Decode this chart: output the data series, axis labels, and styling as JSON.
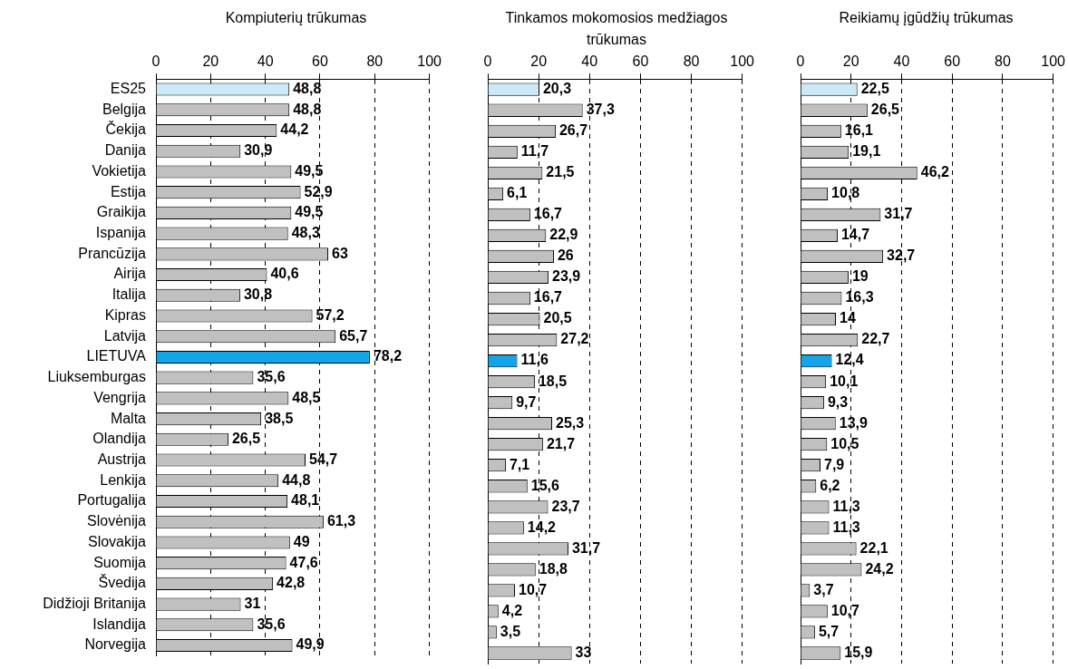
{
  "chart_data": [
    {
      "type": "bar",
      "orientation": "horizontal",
      "title": "Kompiuterių trūkumas",
      "categories": [
        "ES25",
        "Belgija",
        "Čekija",
        "Danija",
        "Vokietija",
        "Estija",
        "Graikija",
        "Ispanija",
        "Prancūzija",
        "Airija",
        "Italija",
        "Kipras",
        "Latvija",
        "LIETUVA",
        "Liuksemburgas",
        "Vengrija",
        "Malta",
        "Olandija",
        "Austrija",
        "Lenkija",
        "Portugalija",
        "Slovėnija",
        "Slovakija",
        "Suomija",
        "Švedija",
        "Didžioji Britanija",
        "Islandija",
        "Norvegija"
      ],
      "values": [
        48.8,
        48.8,
        44.2,
        30.9,
        49.5,
        52.9,
        49.5,
        48.3,
        63,
        40.6,
        30.8,
        57.2,
        65.7,
        78.2,
        35.6,
        48.5,
        38.5,
        26.5,
        54.7,
        44.8,
        48.1,
        61.3,
        49,
        47.6,
        42.8,
        31,
        35.6,
        49.9
      ],
      "value_labels": [
        "48,8",
        "48,8",
        "44,2",
        "30,9",
        "49,5",
        "52,9",
        "49,5",
        "48,3",
        "63",
        "40,6",
        "30,8",
        "57,2",
        "65,7",
        "78,2",
        "35,6",
        "48,5",
        "38,5",
        "26,5",
        "54,7",
        "44,8",
        "48,1",
        "61,3",
        "49",
        "47,6",
        "42,8",
        "31",
        "35,6",
        "49,9"
      ],
      "colors": [
        "#cce9f7",
        "#c0c0c0",
        "#c0c0c0",
        "#c0c0c0",
        "#c0c0c0",
        "#c0c0c0",
        "#c0c0c0",
        "#c0c0c0",
        "#c0c0c0",
        "#c0c0c0",
        "#c0c0c0",
        "#c0c0c0",
        "#c0c0c0",
        "#12a5e8",
        "#c0c0c0",
        "#c0c0c0",
        "#c0c0c0",
        "#c0c0c0",
        "#c0c0c0",
        "#c0c0c0",
        "#c0c0c0",
        "#c0c0c0",
        "#c0c0c0",
        "#c0c0c0",
        "#c0c0c0",
        "#c0c0c0",
        "#c0c0c0",
        "#c0c0c0"
      ],
      "xlim": [
        0,
        100
      ],
      "xticks": [
        0,
        20,
        40,
        60,
        80,
        100
      ],
      "grid": "x",
      "legend": false
    },
    {
      "type": "bar",
      "orientation": "horizontal",
      "title": "Tinkamos mokomosios medžiagos trūkumas",
      "categories": [
        null,
        null,
        null,
        null,
        null,
        null,
        null,
        null,
        null,
        null,
        null,
        null,
        null,
        null,
        null,
        null,
        null,
        null,
        null,
        null,
        null,
        null,
        null,
        null,
        null,
        null,
        null,
        null
      ],
      "values": [
        20.3,
        37.3,
        26.7,
        11.7,
        21.5,
        6.1,
        16.7,
        22.9,
        26,
        23.9,
        16.7,
        20.5,
        27.2,
        11.6,
        18.5,
        9.7,
        25.3,
        21.7,
        7.1,
        15.6,
        23.7,
        14.2,
        31.7,
        18.8,
        10.7,
        4.2,
        3.5,
        33
      ],
      "value_labels": [
        "20,3",
        "37,3",
        "26,7",
        "11,7",
        "21,5",
        "6,1",
        "16,7",
        "22,9",
        "26",
        "23,9",
        "16,7",
        "20,5",
        "27,2",
        "11,6",
        "18,5",
        "9,7",
        "25,3",
        "21,7",
        "7,1",
        "15,6",
        "23,7",
        "14,2",
        "31,7",
        "18,8",
        "10,7",
        "4,2",
        "3,5",
        "33"
      ],
      "colors": [
        "#cce9f7",
        "#c0c0c0",
        "#c0c0c0",
        "#c0c0c0",
        "#c0c0c0",
        "#c0c0c0",
        "#c0c0c0",
        "#c0c0c0",
        "#c0c0c0",
        "#c0c0c0",
        "#c0c0c0",
        "#c0c0c0",
        "#c0c0c0",
        "#12a5e8",
        "#c0c0c0",
        "#c0c0c0",
        "#c0c0c0",
        "#c0c0c0",
        "#c0c0c0",
        "#c0c0c0",
        "#c0c0c0",
        "#c0c0c0",
        "#c0c0c0",
        "#c0c0c0",
        "#c0c0c0",
        "#c0c0c0",
        "#c0c0c0",
        "#c0c0c0"
      ],
      "xlim": [
        0,
        100
      ],
      "xticks": [
        0,
        20,
        40,
        60,
        80,
        100
      ],
      "grid": "x",
      "legend": false,
      "tick_labels": "x"
    },
    {
      "type": "bar",
      "orientation": "horizontal",
      "title": "Reikiamų įgūdžių trūkumas",
      "categories": [
        null,
        null,
        null,
        null,
        null,
        null,
        null,
        null,
        null,
        null,
        null,
        null,
        null,
        null,
        null,
        null,
        null,
        null,
        null,
        null,
        null,
        null,
        null,
        null,
        null,
        null,
        null,
        null
      ],
      "values": [
        22.5,
        26.5,
        16.1,
        19.1,
        46.2,
        10.8,
        31.7,
        14.7,
        32.7,
        19,
        16.3,
        14,
        22.7,
        12.4,
        10.1,
        9.3,
        13.9,
        10.5,
        7.9,
        6.2,
        11.3,
        11.3,
        22.1,
        24.2,
        3.7,
        10.7,
        5.7,
        15.9
      ],
      "value_labels": [
        "22,5",
        "26,5",
        "16,1",
        "19,1",
        "46,2",
        "10,8",
        "31,7",
        "14,7",
        "32,7",
        "19",
        "16,3",
        "14",
        "22,7",
        "12,4",
        "10,1",
        "9,3",
        "13,9",
        "10,5",
        "7,9",
        "6,2",
        "11,3",
        "11,3",
        "22,1",
        "24,2",
        "3,7",
        "10,7",
        "5,7",
        "15,9"
      ],
      "colors": [
        "#cce9f7",
        "#c0c0c0",
        "#c0c0c0",
        "#c0c0c0",
        "#c0c0c0",
        "#c0c0c0",
        "#c0c0c0",
        "#c0c0c0",
        "#c0c0c0",
        "#c0c0c0",
        "#c0c0c0",
        "#c0c0c0",
        "#c0c0c0",
        "#12a5e8",
        "#c0c0c0",
        "#c0c0c0",
        "#c0c0c0",
        "#c0c0c0",
        "#c0c0c0",
        "#c0c0c0",
        "#c0c0c0",
        "#c0c0c0",
        "#c0c0c0",
        "#c0c0c0",
        "#c0c0c0",
        "#c0c0c0",
        "#c0c0c0",
        "#c0c0c0"
      ],
      "xlim": [
        0,
        100
      ],
      "xticks": [
        0,
        20,
        40,
        60,
        80,
        100
      ],
      "grid": "x",
      "legend": false,
      "tick_labels": "x"
    }
  ]
}
